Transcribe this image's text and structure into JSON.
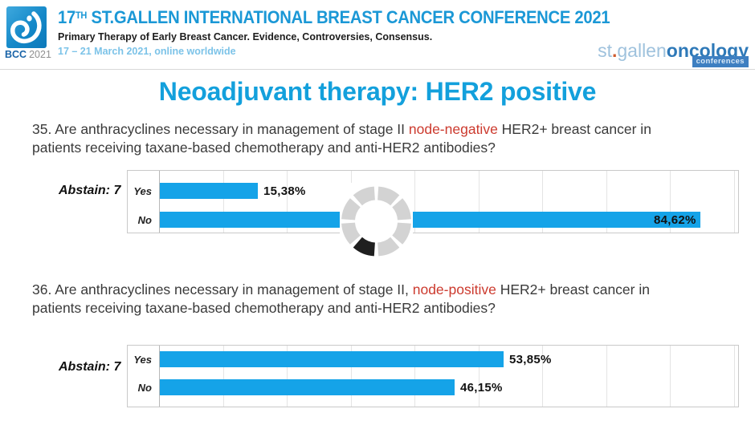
{
  "header": {
    "logo": {
      "acronym": "BCC",
      "year": "2021"
    },
    "title_prefix": "17",
    "title_sup": "TH",
    "title_rest": " ST.GALLEN INTERNATIONAL BREAST CANCER CONFERENCE 2021",
    "subtitle": "Primary Therapy of Early Breast Cancer. Evidence, Controversies, Consensus.",
    "dates": "17 – 21 March 2021, online worldwide",
    "brand": {
      "part1": "st",
      "dot": ".",
      "part2": "gallen",
      "part3": "oncology",
      "badge": "conferences"
    }
  },
  "main": {
    "title": "Neoadjuvant therapy: HER2 positive",
    "questions": [
      {
        "number": "35.",
        "text_before": " Are anthracyclines necessary in management of stage II ",
        "highlight": "node-negative",
        "text_after": " HER2+ breast cancer in patients receiving taxane-based chemotherapy and anti-HER2 antibodies?"
      },
      {
        "number": "36.",
        "text_before": " Are anthracyclines necessary in management of stage II, ",
        "highlight": "node-positive",
        "text_after": " HER2+ breast cancer in patients receiving taxane-based chemotherapy and anti-HER2 antibodies?"
      }
    ]
  },
  "colors": {
    "header_blue": "#1b98d6",
    "dates_blue": "#7cc3e8",
    "title_blue": "#13a0dc",
    "bar_blue": "#15a3e8",
    "highlight_red": "#cc3a2e",
    "spinner_gray": "#d3d3d3",
    "spinner_dark": "#1f1f1f"
  },
  "chart_data": [
    {
      "type": "bar",
      "orientation": "horizontal",
      "question_ref": "35",
      "categories": [
        "Yes",
        "No"
      ],
      "values": [
        15.38,
        84.62
      ],
      "value_labels": [
        "15,38%",
        "84,62%"
      ],
      "abstain_label": "Abstain: 7",
      "xlim": [
        0,
        100
      ],
      "gridline_interval": 10,
      "bar_color": "#15a3e8",
      "loading_spinner": true
    },
    {
      "type": "bar",
      "orientation": "horizontal",
      "question_ref": "36",
      "categories": [
        "Yes",
        "No"
      ],
      "values": [
        53.85,
        46.15
      ],
      "value_labels": [
        "53,85%",
        "46,15%"
      ],
      "abstain_label": "Abstain: 7",
      "xlim": [
        0,
        100
      ],
      "gridline_interval": 10,
      "bar_color": "#15a3e8",
      "loading_spinner": false
    }
  ]
}
